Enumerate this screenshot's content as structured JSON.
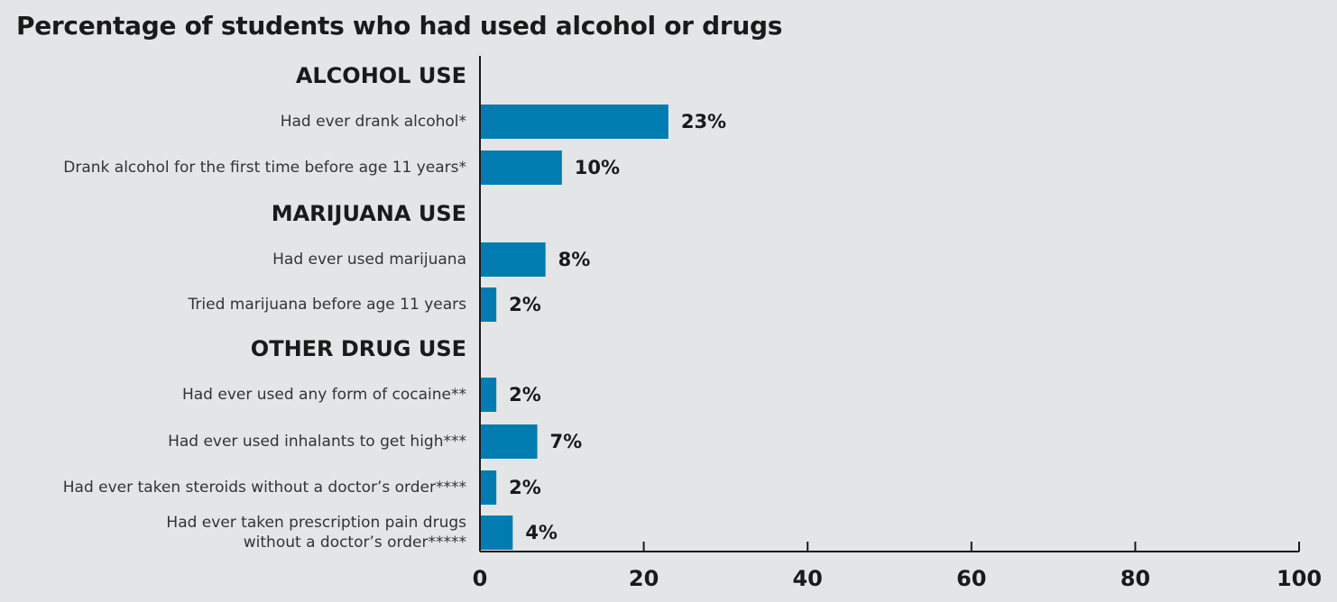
{
  "chart_data": {
    "type": "bar",
    "orientation": "horizontal",
    "title": "Percentage of students who had used alcohol or drugs",
    "xlabel": "",
    "ylabel": "",
    "xlim": [
      0,
      100
    ],
    "xticks": [
      0,
      20,
      40,
      60,
      80,
      100
    ],
    "grid": false,
    "legend": "none",
    "bar_color": "#007cb0",
    "value_suffix": "%",
    "groups": [
      {
        "label": "ALCOHOL USE",
        "items": [
          {
            "label": [
              "Had ever drank alcohol*"
            ],
            "value": 23
          },
          {
            "label": [
              "Drank alcohol for the first time before age 11 years*"
            ],
            "value": 10
          }
        ]
      },
      {
        "label": "MARIJUANA USE",
        "items": [
          {
            "label": [
              "Had ever used marijuana"
            ],
            "value": 8
          },
          {
            "label": [
              "Tried marijuana before age 11 years"
            ],
            "value": 2
          }
        ]
      },
      {
        "label": "OTHER DRUG USE",
        "items": [
          {
            "label": [
              "Had ever used any form of cocaine**"
            ],
            "value": 2
          },
          {
            "label": [
              "Had ever used inhalants to get high***"
            ],
            "value": 7
          },
          {
            "label": [
              "Had ever taken steroids without a doctor’s order****"
            ],
            "value": 2
          },
          {
            "label": [
              "Had ever taken prescription pain drugs",
              "without a doctor’s order*****"
            ],
            "value": 4
          }
        ]
      }
    ]
  }
}
